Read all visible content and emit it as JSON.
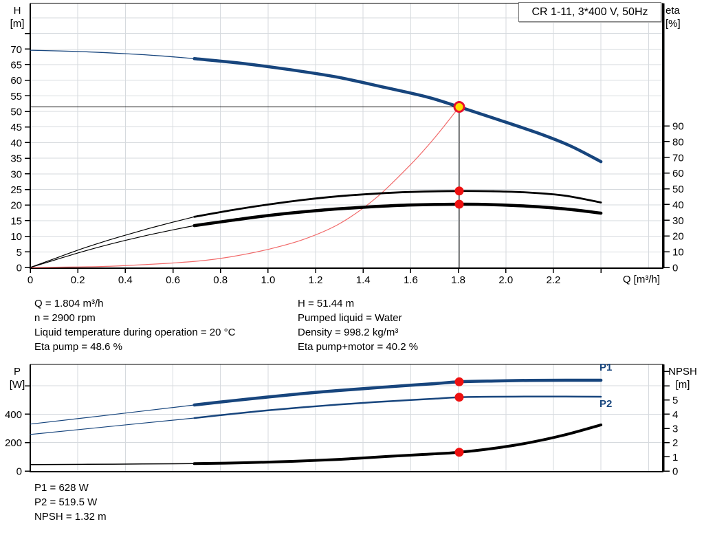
{
  "title_box": {
    "text": "CR 1-11, 3*400 V, 50Hz"
  },
  "colors": {
    "curve_blue": "#17457d",
    "curve_black": "#000000",
    "system_curve_red": "#f16a6a",
    "marker_red": "#ee1111",
    "duty_point_fill": "#ffdf00",
    "duty_point_ring": "#e8112d",
    "grid": "#d6dade",
    "axis": "#000000"
  },
  "info_top": {
    "left": [
      "Q = 1.804 m³/h",
      "n = 2900 rpm",
      "Liquid temperature during operation = 20 °C",
      "Eta pump = 48.6 %"
    ],
    "right": [
      "H = 51.44 m",
      "Pumped liquid = Water",
      "Density = 998.2 kg/m³",
      "Eta pump+motor = 40.2 %"
    ]
  },
  "info_bottom": [
    "P1 = 628 W",
    "P2 = 519.5 W",
    "NPSH = 1.32 m"
  ],
  "chart_data": [
    {
      "id": "performance",
      "type": "line",
      "x_axis": {
        "label": "Q [m³/h]",
        "min": 0,
        "max": 2.657,
        "ticks": [
          {
            "v": 0,
            "t": "0"
          },
          {
            "v": 0.2,
            "t": "0.2"
          },
          {
            "v": 0.4,
            "t": "0.4"
          },
          {
            "v": 0.6,
            "t": "0.6"
          },
          {
            "v": 0.8,
            "t": "0.8"
          },
          {
            "v": 1.0,
            "t": "1.0"
          },
          {
            "v": 1.2,
            "t": "1.2"
          },
          {
            "v": 1.4,
            "t": "1.4"
          },
          {
            "v": 1.6,
            "t": "1.6"
          },
          {
            "v": 1.8,
            "t": "1.8"
          },
          {
            "v": 2.0,
            "t": "2.0"
          },
          {
            "v": 2.2,
            "t": "2.2"
          },
          {
            "v": 2.4,
            "t": ""
          }
        ],
        "grid_values": [
          0.2,
          0.4,
          0.6,
          0.8,
          1.0,
          1.2,
          1.4,
          1.6,
          1.8,
          2.0,
          2.2,
          2.4,
          2.6
        ]
      },
      "left_axis": {
        "label": [
          "H",
          "[m]"
        ],
        "min": 0,
        "max": 84.6,
        "ticks": [
          {
            "v": 0,
            "t": "0"
          },
          {
            "v": 5,
            "t": "5"
          },
          {
            "v": 10,
            "t": "10"
          },
          {
            "v": 15,
            "t": "15"
          },
          {
            "v": 20,
            "t": "20"
          },
          {
            "v": 25,
            "t": "25"
          },
          {
            "v": 30,
            "t": "30"
          },
          {
            "v": 35,
            "t": "35"
          },
          {
            "v": 40,
            "t": "40"
          },
          {
            "v": 45,
            "t": "45"
          },
          {
            "v": 50,
            "t": "50"
          },
          {
            "v": 55,
            "t": "55"
          },
          {
            "v": 60,
            "t": "60"
          },
          {
            "v": 65,
            "t": "65"
          },
          {
            "v": 70,
            "t": "70"
          },
          {
            "v": 75,
            "t": ""
          }
        ],
        "grid_values": [
          5,
          10,
          15,
          20,
          25,
          30,
          35,
          40,
          45,
          50,
          55,
          60,
          65,
          70,
          75,
          80
        ]
      },
      "right_axis": {
        "label": [
          "eta",
          "[%]"
        ],
        "min": 0,
        "max": 167.8,
        "ticks": [
          {
            "v": 0,
            "t": "0"
          },
          {
            "v": 10,
            "t": "10"
          },
          {
            "v": 20,
            "t": "20"
          },
          {
            "v": 30,
            "t": "30"
          },
          {
            "v": 40,
            "t": "40"
          },
          {
            "v": 50,
            "t": "50"
          },
          {
            "v": 60,
            "t": "60"
          },
          {
            "v": 70,
            "t": "70"
          },
          {
            "v": 80,
            "t": "80"
          },
          {
            "v": 90,
            "t": "90"
          }
        ],
        "grid_values": []
      },
      "series": [
        {
          "name": "qh-curve-extension",
          "axis": "left",
          "color": "#17457d",
          "width": 1.3,
          "points": [
            [
              0,
              69.6
            ],
            [
              0.2,
              69.2
            ],
            [
              0.4,
              68.5
            ],
            [
              0.55,
              67.8
            ],
            [
              0.69,
              66.9
            ]
          ]
        },
        {
          "name": "qh-curve",
          "axis": "left",
          "color": "#17457d",
          "width": 4.5,
          "points": [
            [
              0.69,
              66.9
            ],
            [
              0.89,
              65.4
            ],
            [
              1.09,
              63.4
            ],
            [
              1.29,
              61.0
            ],
            [
              1.49,
              57.7
            ],
            [
              1.67,
              54.6
            ],
            [
              1.804,
              51.44
            ],
            [
              1.95,
              47.8
            ],
            [
              2.13,
              43.2
            ],
            [
              2.27,
              39.0
            ],
            [
              2.4,
              33.9
            ]
          ]
        },
        {
          "name": "system-curve",
          "axis": "left",
          "color": "#f16a6a",
          "width": 1.2,
          "points": [
            [
              0,
              0
            ],
            [
              0.3,
              0.3
            ],
            [
              0.5,
              1.0
            ],
            [
              0.7,
              2.0
            ],
            [
              0.85,
              3.5
            ],
            [
              1.0,
              5.8
            ],
            [
              1.15,
              9
            ],
            [
              1.3,
              14
            ],
            [
              1.45,
              22
            ],
            [
              1.6,
              33
            ],
            [
              1.7,
              41.5
            ],
            [
              1.804,
              51.44
            ]
          ]
        },
        {
          "name": "eta-pump-curve-extension",
          "axis": "right",
          "color": "#000000",
          "width": 1.2,
          "points": [
            [
              0,
              0
            ],
            [
              0.1,
              5.5
            ],
            [
              0.2,
              11
            ],
            [
              0.3,
              16
            ],
            [
              0.4,
              20.5
            ],
            [
              0.5,
              24.8
            ],
            [
              0.6,
              28.8
            ],
            [
              0.69,
              32.2
            ]
          ]
        },
        {
          "name": "eta-pump-curve",
          "axis": "right",
          "color": "#000000",
          "width": 2.8,
          "points": [
            [
              0.69,
              32.2
            ],
            [
              0.85,
              36.5
            ],
            [
              1.0,
              40
            ],
            [
              1.15,
              43
            ],
            [
              1.3,
              45.3
            ],
            [
              1.45,
              46.9
            ],
            [
              1.6,
              48
            ],
            [
              1.804,
              48.6
            ],
            [
              1.95,
              48.4
            ],
            [
              2.1,
              47.6
            ],
            [
              2.25,
              45.6
            ],
            [
              2.4,
              41.3
            ]
          ]
        },
        {
          "name": "eta-pump-motor-curve-extension",
          "axis": "right",
          "color": "#000000",
          "width": 1.2,
          "points": [
            [
              0,
              0
            ],
            [
              0.1,
              4.6
            ],
            [
              0.2,
              9.2
            ],
            [
              0.3,
              13.4
            ],
            [
              0.4,
              17.2
            ],
            [
              0.5,
              20.7
            ],
            [
              0.6,
              23.9
            ],
            [
              0.69,
              26.6
            ]
          ]
        },
        {
          "name": "eta-pump-motor-curve",
          "axis": "right",
          "color": "#000000",
          "width": 4.5,
          "points": [
            [
              0.69,
              26.6
            ],
            [
              0.85,
              30
            ],
            [
              1.0,
              33
            ],
            [
              1.15,
              35.4
            ],
            [
              1.3,
              37.3
            ],
            [
              1.45,
              38.7
            ],
            [
              1.6,
              39.7
            ],
            [
              1.804,
              40.2
            ],
            [
              1.95,
              39.9
            ],
            [
              2.1,
              38.9
            ],
            [
              2.25,
              37.2
            ],
            [
              2.4,
              34.5
            ]
          ]
        }
      ],
      "crosshair": {
        "q": 1.804,
        "h": 51.44
      },
      "markers": [
        {
          "name": "duty-point",
          "axis": "left",
          "q": 1.804,
          "v": 51.44,
          "style": "duty"
        },
        {
          "name": "eta-pump-point",
          "axis": "right",
          "q": 1.804,
          "v": 48.6,
          "style": "dot"
        },
        {
          "name": "eta-pump-motor-point",
          "axis": "right",
          "q": 1.804,
          "v": 40.2,
          "style": "dot"
        }
      ]
    },
    {
      "id": "power-npsh",
      "type": "line",
      "x_axis": {
        "label": "",
        "min": 0,
        "max": 2.657,
        "ticks": [],
        "grid_values": [
          0.2,
          0.4,
          0.6,
          0.8,
          1.0,
          1.2,
          1.4,
          1.6,
          1.8,
          2.0,
          2.2,
          2.4,
          2.6
        ]
      },
      "left_axis": {
        "label": [
          "P",
          "[W]"
        ],
        "min": 0,
        "max": 750.5,
        "ticks": [
          {
            "v": 0,
            "t": "0"
          },
          {
            "v": 200,
            "t": "200"
          },
          {
            "v": 400,
            "t": "400"
          },
          {
            "v": 600,
            "t": ""
          }
        ],
        "grid_values": [
          200,
          400,
          600
        ]
      },
      "right_axis": {
        "label": [
          "NPSH",
          "[m]"
        ],
        "min": 0,
        "max": 7.505,
        "ticks": [
          {
            "v": 0,
            "t": "0"
          },
          {
            "v": 1,
            "t": "1"
          },
          {
            "v": 2,
            "t": "2"
          },
          {
            "v": 3,
            "t": "3"
          },
          {
            "v": 4,
            "t": "4"
          },
          {
            "v": 5,
            "t": "5"
          },
          {
            "v": 6,
            "t": ""
          },
          {
            "v": 7,
            "t": ""
          }
        ],
        "grid_values": []
      },
      "series": [
        {
          "name": "p1-curve-extension",
          "axis": "left",
          "color": "#17457d",
          "width": 1.2,
          "points": [
            [
              0,
              330
            ],
            [
              0.35,
              398
            ],
            [
              0.69,
              465
            ]
          ]
        },
        {
          "name": "p1-curve",
          "axis": "left",
          "color": "#17457d",
          "width": 4.5,
          "points": [
            [
              0.69,
              465
            ],
            [
              0.85,
              495
            ],
            [
              1.0,
              521
            ],
            [
              1.15,
              546
            ],
            [
              1.3,
              567
            ],
            [
              1.45,
              586
            ],
            [
              1.6,
              604
            ],
            [
              1.7,
              615
            ],
            [
              1.804,
              628
            ],
            [
              1.95,
              634
            ],
            [
              2.1,
              638
            ],
            [
              2.25,
              639
            ],
            [
              2.4,
              639
            ]
          ]
        },
        {
          "name": "p2-curve-extension",
          "axis": "left",
          "color": "#17457d",
          "width": 1.2,
          "points": [
            [
              0,
              257
            ],
            [
              0.35,
              316
            ],
            [
              0.69,
              373
            ]
          ]
        },
        {
          "name": "p2-curve",
          "axis": "left",
          "color": "#17457d",
          "width": 2.5,
          "points": [
            [
              0.69,
              373
            ],
            [
              0.85,
              402
            ],
            [
              1.0,
              427
            ],
            [
              1.15,
              449
            ],
            [
              1.3,
              468
            ],
            [
              1.45,
              485
            ],
            [
              1.6,
              500
            ],
            [
              1.7,
              509
            ],
            [
              1.804,
              519.5
            ],
            [
              1.95,
              523
            ],
            [
              2.1,
              524
            ],
            [
              2.25,
              524
            ],
            [
              2.4,
              523
            ]
          ]
        },
        {
          "name": "npsh-curve-extension",
          "axis": "right",
          "color": "#000000",
          "width": 1.5,
          "points": [
            [
              0,
              0.45
            ],
            [
              0.35,
              0.48
            ],
            [
              0.69,
              0.52
            ]
          ]
        },
        {
          "name": "npsh-curve",
          "axis": "right",
          "color": "#000000",
          "width": 4,
          "points": [
            [
              0.69,
              0.52
            ],
            [
              0.9,
              0.58
            ],
            [
              1.1,
              0.68
            ],
            [
              1.3,
              0.82
            ],
            [
              1.5,
              1.02
            ],
            [
              1.65,
              1.16
            ],
            [
              1.804,
              1.32
            ],
            [
              1.95,
              1.6
            ],
            [
              2.1,
              2.0
            ],
            [
              2.25,
              2.55
            ],
            [
              2.4,
              3.25
            ]
          ]
        }
      ],
      "markers": [
        {
          "name": "p1-point",
          "axis": "left",
          "q": 1.804,
          "v": 628,
          "style": "dot"
        },
        {
          "name": "p2-point",
          "axis": "left",
          "q": 1.804,
          "v": 519.5,
          "style": "dot"
        },
        {
          "name": "npsh-point",
          "axis": "right",
          "q": 1.804,
          "v": 1.32,
          "style": "dot"
        }
      ],
      "series_labels": [
        {
          "text": "P1"
        },
        {
          "text": "P2"
        }
      ]
    }
  ]
}
